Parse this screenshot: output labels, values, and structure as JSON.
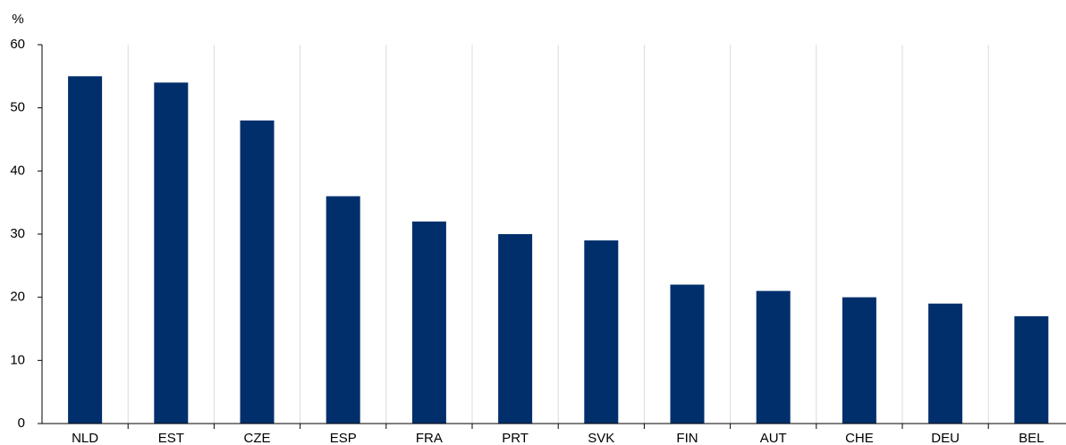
{
  "chart_data": {
    "type": "bar",
    "y_label": "%",
    "categories": [
      "NLD",
      "EST",
      "CZE",
      "ESP",
      "FRA",
      "PRT",
      "SVK",
      "FIN",
      "AUT",
      "CHE",
      "DEU",
      "BEL"
    ],
    "values": [
      55,
      54,
      48,
      36,
      32,
      30,
      29,
      22,
      21,
      20,
      19,
      17
    ],
    "color": "#002f6c",
    "ylim": [
      0,
      60
    ],
    "yticks": [
      0,
      10,
      20,
      30,
      40,
      50,
      60
    ]
  }
}
